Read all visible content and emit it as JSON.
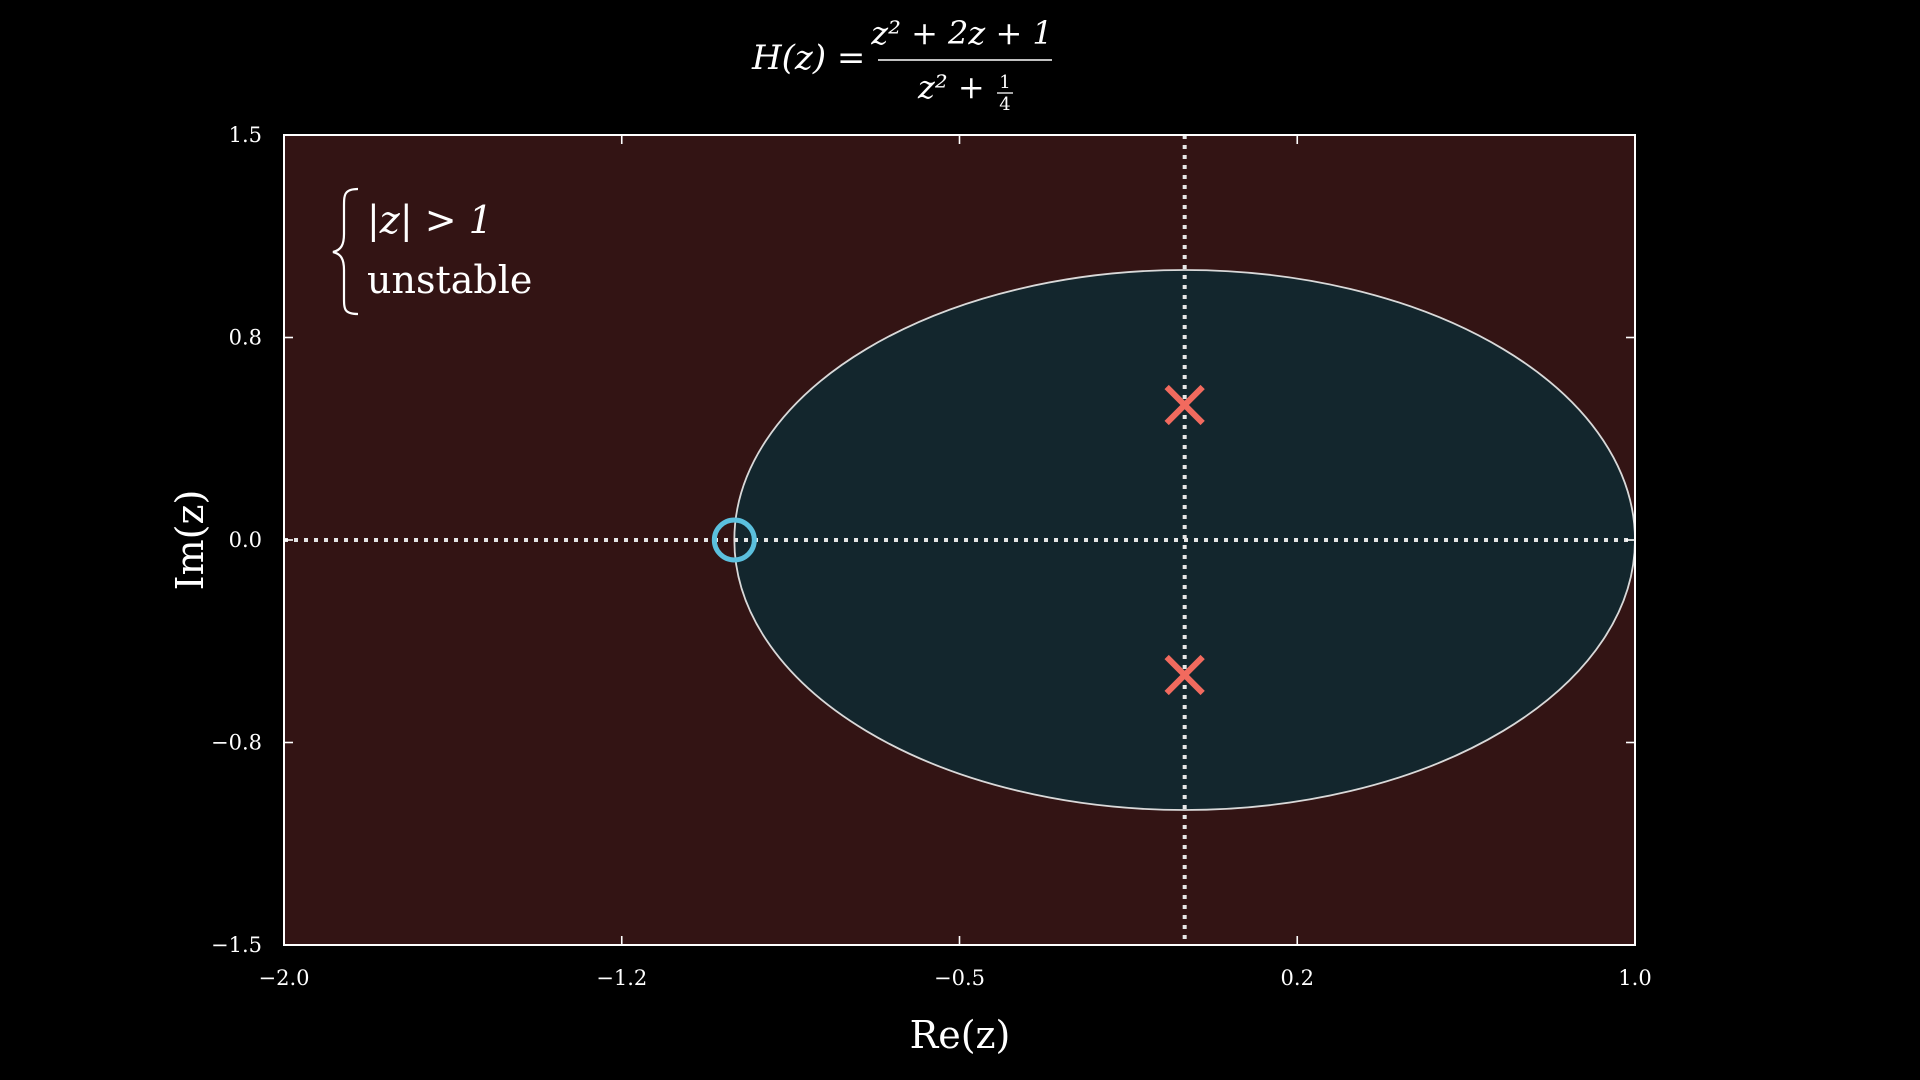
{
  "chart_data": {
    "type": "scatter",
    "title": {
      "lhs": "H(z) =",
      "numerator": "z² + 2z + 1",
      "denominator": "z² + ",
      "denominator_frac_num": "1",
      "denominator_frac_den": "4"
    },
    "xlabel": "Re(z)",
    "ylabel": "Im(z)",
    "xlim": [
      -2.0,
      1.0
    ],
    "ylim": [
      -1.5,
      1.5
    ],
    "x_ticks": [
      {
        "value": -2.0,
        "label": "−2.0"
      },
      {
        "value": -1.25,
        "label": "−1.2"
      },
      {
        "value": -0.5,
        "label": "−0.5"
      },
      {
        "value": 0.25,
        "label": "0.2"
      },
      {
        "value": 1.0,
        "label": "1.0"
      }
    ],
    "y_ticks": [
      {
        "value": 1.5,
        "label": "1.5"
      },
      {
        "value": 0.75,
        "label": "0.8"
      },
      {
        "value": 0.0,
        "label": "0.0"
      },
      {
        "value": -0.75,
        "label": "−0.8"
      },
      {
        "value": -1.5,
        "label": "−1.5"
      }
    ],
    "unit_circle": {
      "center": [
        0,
        0
      ],
      "radius": 1
    },
    "zeros": [
      {
        "x": -1.0,
        "y": 0.0
      }
    ],
    "poles": [
      {
        "x": 0.0,
        "y": 0.5
      },
      {
        "x": 0.0,
        "y": -0.5
      }
    ],
    "annotation": {
      "line1": "|z| > 1",
      "line2": "unstable"
    },
    "grid": false,
    "colors": {
      "background": "#000000",
      "outside_region": "#331414",
      "inside_region": "#13262d",
      "circle_edge": "#d9d9d9",
      "reference_lines": "#e6e6e6",
      "zero_marker": "#5bc0de",
      "pole_marker": "#f26a5e",
      "axes_frame": "#ffffff"
    }
  }
}
